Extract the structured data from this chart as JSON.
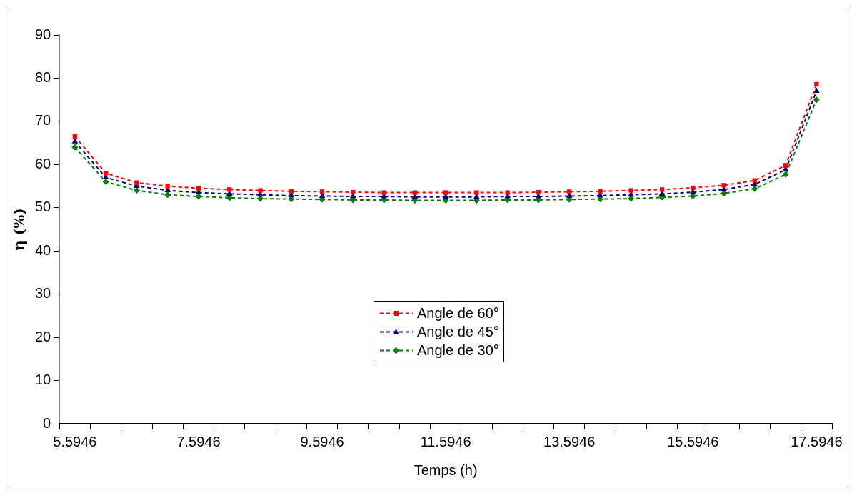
{
  "chart_data": {
    "type": "line",
    "xlabel": "Temps (h)",
    "ylabel": "η (%)",
    "categories": [
      "5.5946",
      null,
      null,
      null,
      "7.5946",
      null,
      null,
      null,
      "9.5946",
      null,
      null,
      null,
      "11.5946",
      null,
      null,
      null,
      "13.5946",
      null,
      null,
      null,
      "15.5946",
      null,
      null,
      null,
      "17.5946"
    ],
    "series": [
      {
        "name": "Angle de 60°",
        "color": "#ff0000",
        "marker": "square",
        "values": [
          66.5,
          58,
          55.8,
          55,
          54.5,
          54.2,
          54,
          53.8,
          53.7,
          53.6,
          53.5,
          53.5,
          53.5,
          53.5,
          53.5,
          53.6,
          53.7,
          53.8,
          54,
          54.2,
          54.6,
          55.2,
          56.3,
          59.8,
          78.6
        ]
      },
      {
        "name": "Angle de 45°",
        "color": "#000080",
        "marker": "triangle",
        "values": [
          65.3,
          57,
          55,
          54,
          53.5,
          53.2,
          53,
          52.8,
          52.7,
          52.6,
          52.6,
          52.5,
          52.5,
          52.5,
          52.6,
          52.6,
          52.7,
          52.8,
          53,
          53.2,
          53.6,
          54.2,
          55.4,
          58.8,
          77
        ]
      },
      {
        "name": "Angle de 30°",
        "color": "#008000",
        "marker": "diamond",
        "values": [
          64,
          56,
          54,
          53,
          52.6,
          52.3,
          52.1,
          52,
          51.9,
          51.8,
          51.8,
          51.7,
          51.7,
          51.7,
          51.8,
          51.8,
          51.9,
          52,
          52.1,
          52.4,
          52.7,
          53.3,
          54.4,
          57.7,
          75
        ]
      }
    ],
    "ylim": [
      0,
      90
    ],
    "yticks": [
      0,
      10,
      20,
      30,
      40,
      50,
      60,
      70,
      80,
      90
    ],
    "grid": false,
    "legend": "bottom",
    "line_style": "dashed"
  }
}
